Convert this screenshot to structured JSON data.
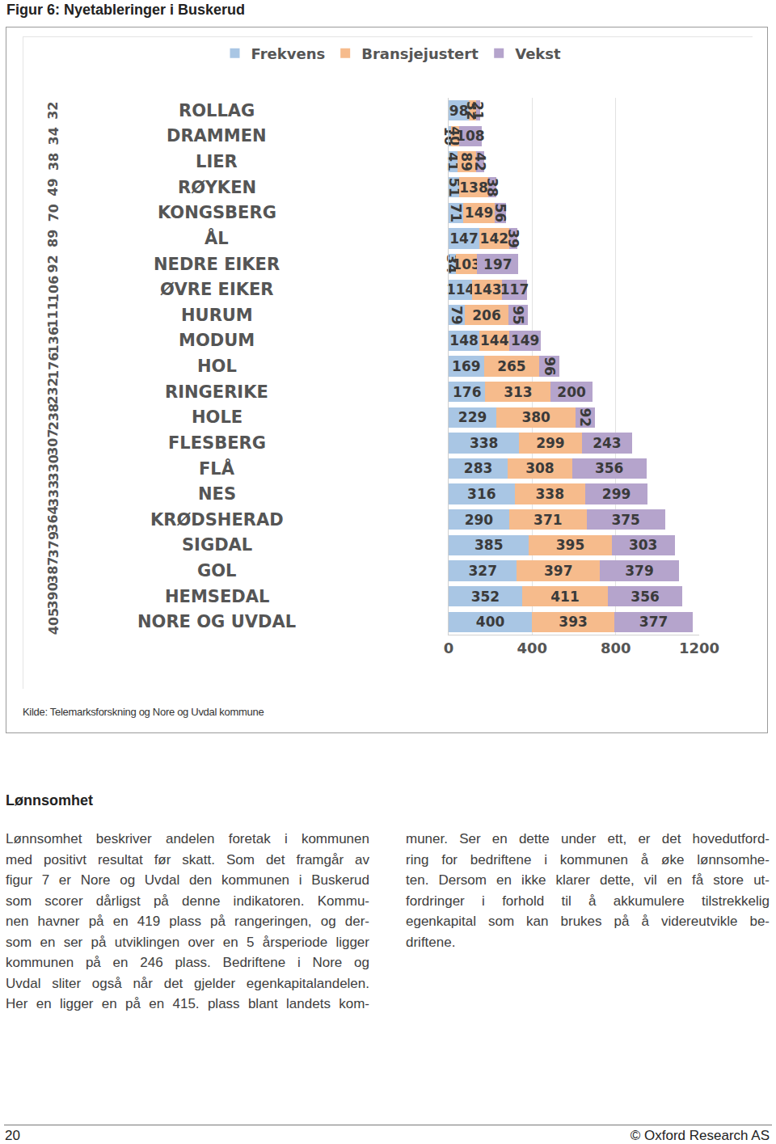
{
  "header": {
    "title": "Figur 6: Nyetableringer i Buskerud"
  },
  "chart_data": {
    "type": "bar",
    "orientation": "horizontal",
    "stacked": true,
    "data_labels": true,
    "grid": true,
    "legend": "top",
    "categories": [
      "ROLLAG",
      "DRAMMEN",
      "LIER",
      "RØYKEN",
      "KONGSBERG",
      "ÅL",
      "NEDRE EIKER",
      "ØVRE EIKER",
      "HURUM",
      "MODUM",
      "HOL",
      "RINGERIKE",
      "HOLE",
      "FLESBERG",
      "FLÅ",
      "NES",
      "KRØDSHERAD",
      "SIGDAL",
      "GOL",
      "HEMSEDAL",
      "NORE OG UVDAL"
    ],
    "side_values": [
      32,
      34,
      38,
      49,
      70,
      89,
      92,
      106,
      111,
      136,
      176,
      232,
      238,
      307,
      330,
      333,
      364,
      379,
      387,
      390,
      405
    ],
    "series": [
      {
        "name": "Frekvens",
        "color": "#a9c6e4",
        "values": [
          98,
          10,
          41,
          51,
          71,
          147,
          34,
          114,
          79,
          148,
          169,
          176,
          229,
          338,
          283,
          316,
          290,
          385,
          327,
          352,
          400
        ]
      },
      {
        "name": "Bransjejustert",
        "color": "#f6bb8c",
        "values": [
          32,
          40,
          89,
          138,
          149,
          142,
          103,
          143,
          206,
          144,
          265,
          313,
          380,
          299,
          308,
          338,
          371,
          395,
          397,
          411,
          393
        ]
      },
      {
        "name": "Vekst",
        "color": "#b5a4cc",
        "values": [
          21,
          108,
          42,
          38,
          56,
          39,
          197,
          117,
          95,
          149,
          96,
          200,
          92,
          243,
          356,
          299,
          375,
          303,
          379,
          356,
          377
        ]
      }
    ],
    "xlim": [
      0,
      1200
    ],
    "xticks": [
      0,
      400,
      800,
      1200
    ]
  },
  "source": "Kilde: Telemarksforskning og Nore og Uvdal kommune",
  "section": {
    "heading": "Lønnsomhet",
    "columns": [
      [
        "Lønnsomhet beskriver andelen foretak i kommunen",
        "med positivt resultat før skatt. Som det framgår av",
        "figur 7 er Nore og Uvdal den kommunen i Buskerud",
        "som scorer dårligst på denne indikatoren. Kommu-",
        "nen havner på en 419 plass på rangeringen, og der-",
        "som en ser på utviklingen over en 5 årsperiode ligger",
        "kommunen på en 246 plass. Bedriftene i Nore og",
        "Uvdal sliter også når det gjelder egenkapitalandelen.",
        "Her en ligger en på en 415. plass blant landets kom-"
      ],
      [
        "muner. Ser en dette under ett, er det hovedutford-",
        "ring for bedriftene i kommunen å øke lønnsomhe-",
        "ten. Dersom en ikke klarer dette, vil en få store ut-",
        "fordringer i forhold til å akkumulere tilstrekkelig",
        "egenkapital som kan brukes på å videreutvikle be-",
        "driftene."
      ]
    ]
  },
  "footer": {
    "page": "20",
    "copyright": "© Oxford Research AS"
  }
}
